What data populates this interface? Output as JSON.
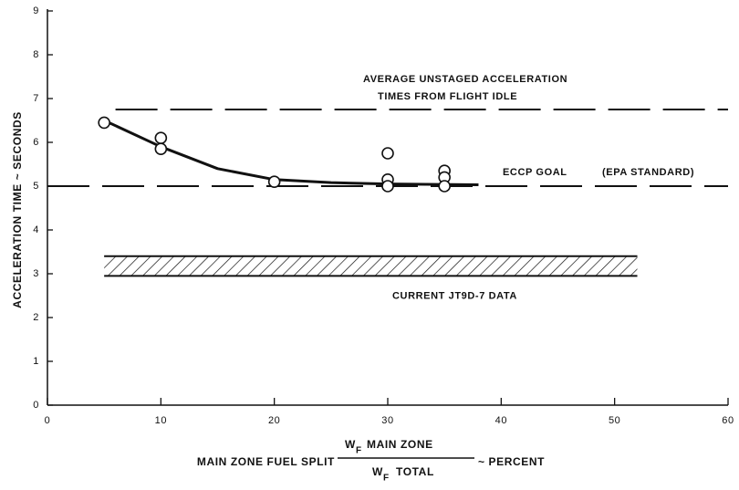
{
  "chart_data": {
    "type": "scatter",
    "ylabel": "ACCELERATION TIME ~ SECONDS",
    "xlabel": {
      "lead": "MAIN ZONE FUEL SPLIT",
      "numerator": {
        "symbol": "W",
        "subscript": "F",
        "text": "MAIN ZONE"
      },
      "denominator": {
        "symbol": "W",
        "subscript": "F",
        "text": "TOTAL"
      },
      "tail": "~ PERCENT"
    },
    "xlim": [
      0,
      60
    ],
    "ylim": [
      0,
      9
    ],
    "xticks": [
      0,
      10,
      20,
      30,
      40,
      50,
      60
    ],
    "yticks": [
      0,
      1,
      2,
      3,
      4,
      5,
      6,
      7,
      8,
      9
    ],
    "color": "#111111",
    "points": {
      "x": [
        5,
        10,
        10,
        20,
        30,
        30,
        30,
        35,
        35,
        35
      ],
      "y": [
        6.45,
        6.1,
        5.85,
        5.1,
        5.75,
        5.15,
        5.0,
        5.35,
        5.2,
        5.0
      ]
    },
    "curve": {
      "x": [
        5,
        10,
        15,
        20,
        25,
        30,
        38
      ],
      "y": [
        6.5,
        5.9,
        5.4,
        5.15,
        5.08,
        5.05,
        5.03
      ]
    },
    "reference_lines": [
      {
        "y": 6.75,
        "x": [
          6,
          60
        ],
        "labels": [
          "AVERAGE UNSTAGED ACCELERATION",
          "TIMES FROM FLIGHT IDLE"
        ]
      },
      {
        "y": 5.0,
        "x": [
          0,
          60
        ],
        "labels": [
          "ECCP GOAL",
          "(EPA STANDARD)"
        ]
      }
    ],
    "band": {
      "x": [
        5,
        52
      ],
      "y": [
        2.95,
        3.4
      ],
      "label": "CURRENT JT9D-7 DATA"
    }
  }
}
